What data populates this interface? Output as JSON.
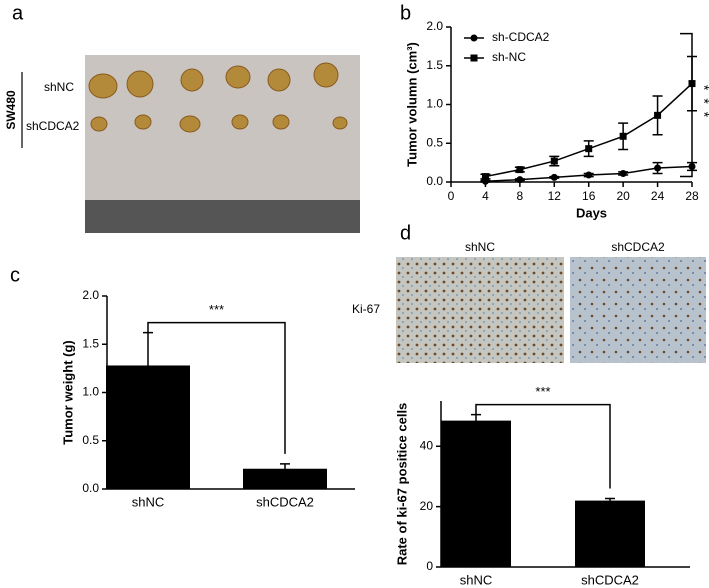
{
  "panel_labels": [
    "a",
    "b",
    "c",
    "d"
  ],
  "panel_a": {
    "cell_line": "SW480",
    "rows": [
      "shNC",
      "shCDCA2"
    ]
  },
  "panel_d_images": {
    "columns": [
      "shNC",
      "shCDCA2"
    ],
    "row": "Ki-67"
  },
  "chart_data": [
    {
      "type": "line",
      "xlabel": "Days",
      "ylabel": "Tumor volumn (cm³)",
      "x": [
        4,
        8,
        12,
        16,
        20,
        24,
        28
      ],
      "series": [
        {
          "name": "sh-CDCA2",
          "color": "#000000",
          "marker": "circle",
          "values": [
            0.01,
            0.03,
            0.06,
            0.09,
            0.11,
            0.18,
            0.2
          ],
          "errors": [
            0.01,
            0.01,
            0.01,
            0.02,
            0.02,
            0.07,
            0.05
          ]
        },
        {
          "name": "sh-NC",
          "color": "#000000",
          "marker": "square",
          "values": [
            0.07,
            0.16,
            0.27,
            0.43,
            0.59,
            0.86,
            1.27
          ],
          "errors": [
            0.03,
            0.03,
            0.06,
            0.1,
            0.17,
            0.25,
            0.35
          ]
        }
      ],
      "xlim": [
        0,
        28
      ],
      "xticks": [
        0,
        4,
        8,
        12,
        16,
        20,
        24,
        28
      ],
      "ylim": [
        0,
        2
      ],
      "yticks": [
        {
          "value": 0,
          "label": "0.0"
        },
        {
          "value": 0.5,
          "label": "0.5"
        },
        {
          "value": 1,
          "label": "1.0"
        },
        {
          "value": 1.5,
          "label": "1.5"
        },
        {
          "value": 2,
          "label": "2.0"
        }
      ],
      "significance": "***",
      "legend": "upper left"
    },
    {
      "type": "bar",
      "ylabel": "Tumor weight (g)",
      "categories": [
        "shNC",
        "shCDCA2"
      ],
      "values": [
        1.28,
        0.21
      ],
      "errors": [
        0.34,
        0.05
      ],
      "color": "#000000",
      "ylim": [
        0,
        2
      ],
      "yticks": [
        {
          "value": 0,
          "label": "0.0"
        },
        {
          "value": 0.5,
          "label": "0.5"
        },
        {
          "value": 1,
          "label": "1.0"
        },
        {
          "value": 1.5,
          "label": "1.5"
        },
        {
          "value": 2,
          "label": "2.0"
        }
      ],
      "significance": "***"
    },
    {
      "type": "bar",
      "ylabel": "Rate of ki-67 positice cells",
      "categories": [
        "shNC",
        "shCDCA2"
      ],
      "values": [
        48.5,
        22
      ],
      "errors": [
        2,
        0.7
      ],
      "color": "#000000",
      "ylim": [
        0,
        55
      ],
      "yticks": [
        0,
        20,
        40
      ],
      "significance": "***"
    }
  ]
}
